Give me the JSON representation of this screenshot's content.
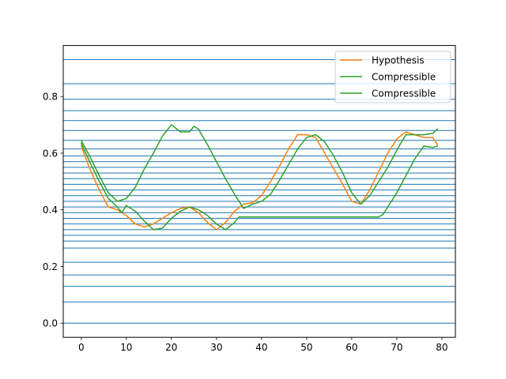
{
  "chart_data": {
    "type": "line",
    "title": "",
    "xlabel": "",
    "ylabel": "",
    "xlim": [
      -4,
      83
    ],
    "ylim": [
      -0.05,
      0.98
    ],
    "x_ticks": [
      0,
      10,
      20,
      30,
      40,
      50,
      60,
      70,
      80
    ],
    "x_tick_labels": [
      "0",
      "10",
      "20",
      "30",
      "40",
      "50",
      "60",
      "70",
      "80"
    ],
    "y_ticks": [
      0.0,
      0.2,
      0.4,
      0.6,
      0.8
    ],
    "y_tick_labels": [
      "0.0",
      "0.2",
      "0.4",
      "0.6",
      "0.8"
    ],
    "hlines": {
      "color": "#1f77b4",
      "values": [
        0.0,
        0.075,
        0.13,
        0.17,
        0.215,
        0.265,
        0.29,
        0.31,
        0.33,
        0.35,
        0.37,
        0.39,
        0.41,
        0.43,
        0.45,
        0.47,
        0.49,
        0.51,
        0.53,
        0.55,
        0.57,
        0.59,
        0.615,
        0.645,
        0.68,
        0.715,
        0.75,
        0.79,
        0.845,
        0.93
      ]
    },
    "legend": {
      "position": "upper right"
    },
    "series": [
      {
        "name": "Hypothesis",
        "color": "#ff7f0e",
        "x": [
          0,
          2,
          4,
          6,
          8,
          10,
          12,
          14,
          16,
          18,
          20,
          22,
          24,
          26,
          28,
          30,
          32,
          34,
          36,
          38,
          40,
          42,
          44,
          46,
          48,
          50,
          52,
          54,
          56,
          58,
          60,
          62,
          64,
          66,
          68,
          70,
          72,
          74,
          76,
          78,
          79
        ],
        "y": [
          0.625,
          0.54,
          0.47,
          0.41,
          0.4,
          0.38,
          0.35,
          0.34,
          0.35,
          0.37,
          0.39,
          0.405,
          0.41,
          0.39,
          0.355,
          0.33,
          0.355,
          0.395,
          0.42,
          0.425,
          0.45,
          0.5,
          0.555,
          0.615,
          0.665,
          0.665,
          0.655,
          0.6,
          0.545,
          0.49,
          0.43,
          0.42,
          0.47,
          0.535,
          0.6,
          0.65,
          0.675,
          0.665,
          0.655,
          0.655,
          0.63
        ]
      },
      {
        "name": "Compressible",
        "color": "#2ca02c",
        "x": [
          0,
          2,
          4,
          6,
          8,
          10,
          12,
          14,
          16,
          18,
          20,
          22,
          24,
          25,
          26,
          28,
          30,
          32,
          34,
          35,
          36,
          38,
          40,
          42,
          44,
          46,
          48,
          50,
          52,
          54,
          56,
          58,
          60,
          62,
          64,
          66,
          68,
          70,
          72,
          74,
          76,
          78,
          79
        ],
        "y": [
          0.645,
          0.585,
          0.52,
          0.46,
          0.43,
          0.44,
          0.48,
          0.545,
          0.6,
          0.66,
          0.7,
          0.675,
          0.675,
          0.695,
          0.685,
          0.63,
          0.57,
          0.51,
          0.455,
          0.43,
          0.405,
          0.42,
          0.43,
          0.455,
          0.505,
          0.56,
          0.615,
          0.655,
          0.665,
          0.64,
          0.59,
          0.53,
          0.46,
          0.42,
          0.45,
          0.5,
          0.55,
          0.61,
          0.665,
          0.665,
          0.665,
          0.67,
          0.685
        ]
      },
      {
        "name": "Compressible",
        "color": "#2ca02c",
        "x": [
          0,
          2,
          4,
          6,
          8,
          9,
          10,
          12,
          14,
          16,
          18,
          20,
          22,
          24,
          26,
          28,
          30,
          32,
          34,
          35,
          36,
          40,
          45,
          50,
          55,
          60,
          65,
          66,
          67,
          68,
          70,
          72,
          74,
          76,
          78,
          79
        ],
        "y": [
          0.635,
          0.565,
          0.5,
          0.44,
          0.41,
          0.39,
          0.415,
          0.395,
          0.36,
          0.33,
          0.335,
          0.37,
          0.395,
          0.41,
          0.4,
          0.38,
          0.35,
          0.33,
          0.355,
          0.375,
          0.375,
          0.375,
          0.375,
          0.375,
          0.375,
          0.375,
          0.375,
          0.375,
          0.385,
          0.41,
          0.46,
          0.52,
          0.58,
          0.625,
          0.62,
          0.625
        ]
      }
    ]
  }
}
